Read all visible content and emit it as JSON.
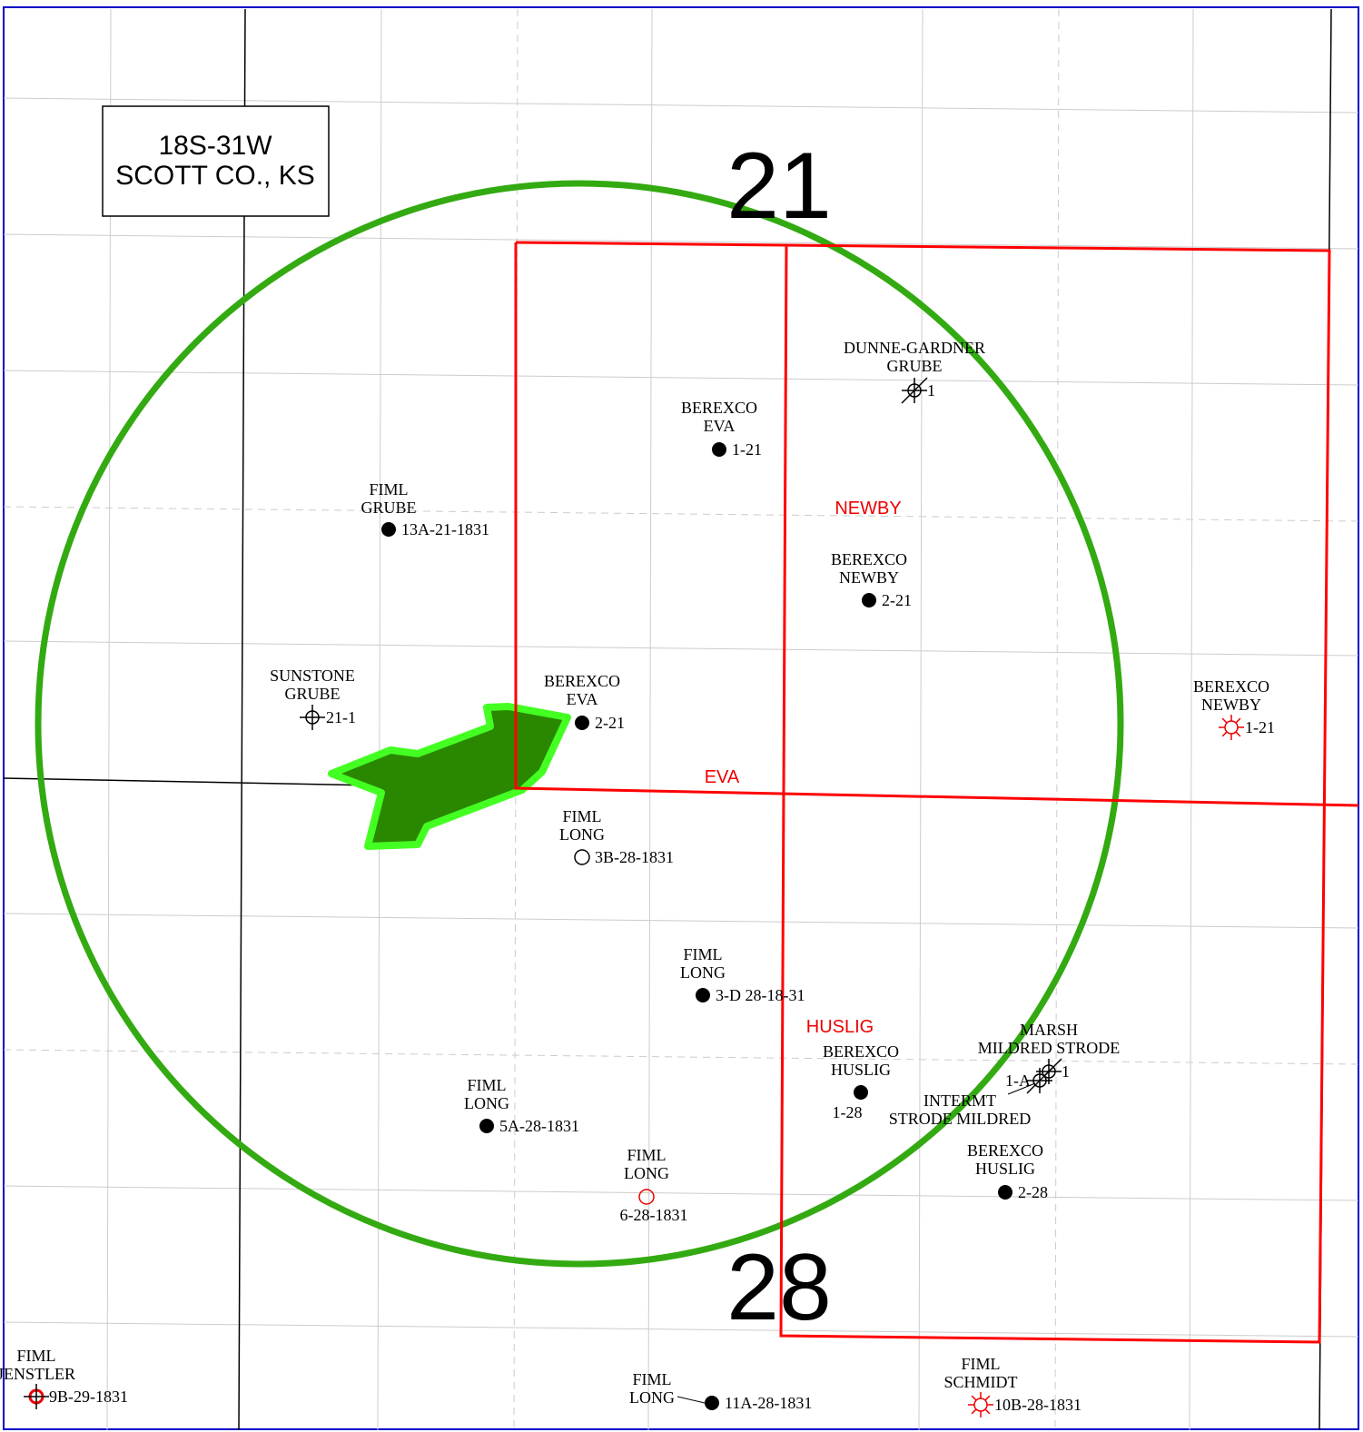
{
  "location_box": {
    "line1": "18S-31W",
    "line2": "SCOTT CO., KS"
  },
  "sections": [
    "21",
    "28"
  ],
  "leases": [
    "NEWBY",
    "EVA",
    "HUSLIG"
  ],
  "wells": [
    {
      "operator": "DUNNE-GARDNER",
      "lease": "GRUBE",
      "number": "1"
    },
    {
      "operator": "BEREXCO",
      "lease": "EVA",
      "number": "1-21"
    },
    {
      "operator": "FIML",
      "lease": "GRUBE",
      "number": "13A-21-1831"
    },
    {
      "operator": "BEREXCO",
      "lease": "NEWBY",
      "number": "2-21"
    },
    {
      "operator": "SUNSTONE",
      "lease": "GRUBE",
      "number": "21-1"
    },
    {
      "operator": "BEREXCO",
      "lease": "EVA",
      "number": "2-21"
    },
    {
      "operator": "BEREXCO",
      "lease": "NEWBY",
      "number": "1-21"
    },
    {
      "operator": "FIML",
      "lease": "LONG",
      "number": "3B-28-1831"
    },
    {
      "operator": "FIML",
      "lease": "LONG",
      "number": "3-D 28-18-31"
    },
    {
      "operator": "BEREXCO",
      "lease": "HUSLIG",
      "number": "1-28"
    },
    {
      "operator": "MARSH",
      "lease": "MILDRED STRODE",
      "number": "1"
    },
    {
      "operator": "INTERMT",
      "lease": "STRODE MILDRED",
      "number": "1-A"
    },
    {
      "operator": "FIML",
      "lease": "LONG",
      "number": "5A-28-1831"
    },
    {
      "operator": "FIML",
      "lease": "LONG",
      "number": "6-28-1831"
    },
    {
      "operator": "BEREXCO",
      "lease": "HUSLIG",
      "number": "2-28"
    },
    {
      "operator": "FIML",
      "lease": "JENSTLER",
      "number": "9B-29-1831"
    },
    {
      "operator": "FIML",
      "lease": "LONG",
      "number": "11A-28-1831"
    },
    {
      "operator": "FIML",
      "lease": "SCHMIDT",
      "number": "10B-28-1831"
    }
  ]
}
